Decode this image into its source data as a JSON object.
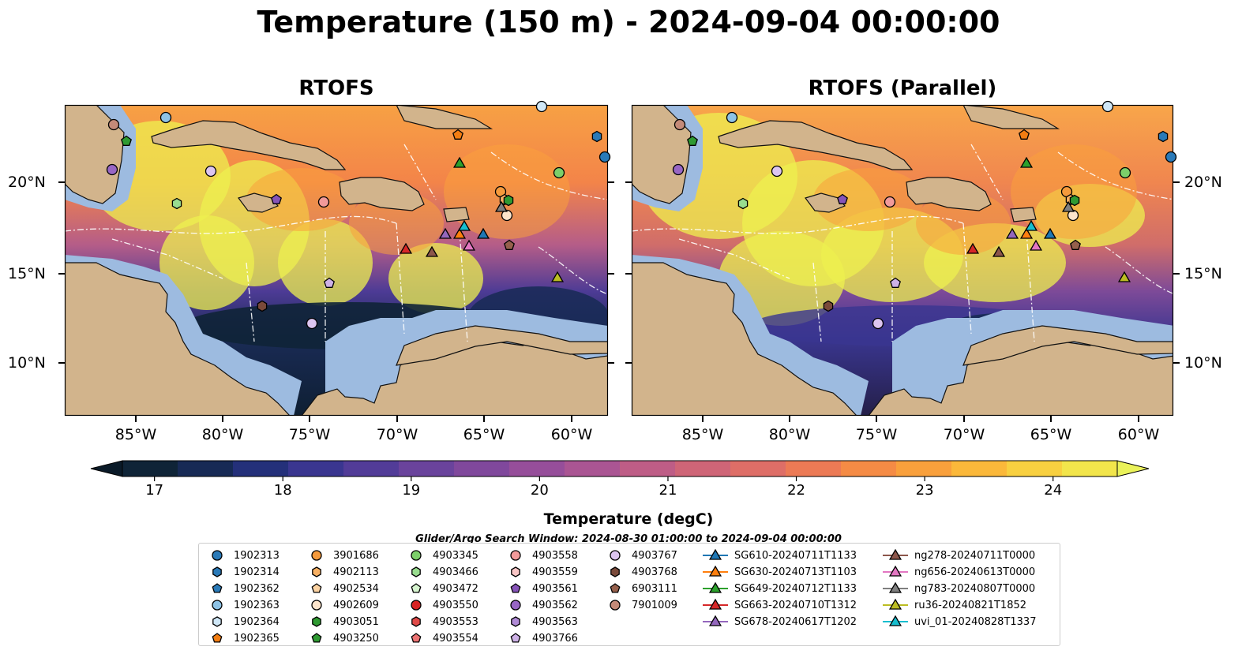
{
  "title": "Temperature (150 m) - 2024-09-04 00:00:00",
  "panels": [
    {
      "name": "RTOFS"
    },
    {
      "name": "RTOFS (Parallel)"
    }
  ],
  "latitude_labels": [
    "20°N",
    "15°N",
    "10°N"
  ],
  "longitude_labels": [
    "85°W",
    "80°W",
    "75°W",
    "70°W",
    "65°W",
    "60°W"
  ],
  "colorbar": {
    "label": "Temperature (degC)",
    "ticks": [
      "17",
      "18",
      "19",
      "20",
      "21",
      "22",
      "23",
      "24"
    ],
    "min": 16.75,
    "max": 24.5,
    "colors": [
      "#0f2437",
      "#172a55",
      "#24307a",
      "#3a3690",
      "#523c98",
      "#6a439c",
      "#80489c",
      "#964e9a",
      "#aa5593",
      "#be5d86",
      "#cf6577",
      "#de6e67",
      "#ec7a55",
      "#f58b45",
      "#f9a03c",
      "#fbb83a",
      "#f8d040",
      "#f2e54b"
    ],
    "extend_low_color": "#0a1a28",
    "extend_high_color": "#eaf25a"
  },
  "search_window": "Glider/Argo Search Window: 2024-08-30 01:00:00 to 2024-09-04 00:00:00",
  "legend": {
    "argo": [
      {
        "label": "1902313",
        "shape": "circle",
        "color": "#2a7ab8"
      },
      {
        "label": "1902314",
        "shape": "hexagon",
        "color": "#2a7ab8"
      },
      {
        "label": "1902362",
        "shape": "pentagon",
        "color": "#2a7ab8"
      },
      {
        "label": "1902363",
        "shape": "circle",
        "color": "#8ec3e6"
      },
      {
        "label": "1902364",
        "shape": "hexagon",
        "color": "#cfe7f7"
      },
      {
        "label": "1902365",
        "shape": "pentagon",
        "color": "#f27d12"
      },
      {
        "label": "3901686",
        "shape": "circle",
        "color": "#f59a3c"
      },
      {
        "label": "4902113",
        "shape": "hexagon",
        "color": "#f8b063"
      },
      {
        "label": "4902534",
        "shape": "pentagon",
        "color": "#fcd3a2"
      },
      {
        "label": "4902609",
        "shape": "circle",
        "color": "#fde5cc"
      },
      {
        "label": "4903051",
        "shape": "hexagon",
        "color": "#2f9a32"
      },
      {
        "label": "4903250",
        "shape": "pentagon",
        "color": "#2f9a32"
      },
      {
        "label": "4903345",
        "shape": "circle",
        "color": "#7ccf6a"
      },
      {
        "label": "4903466",
        "shape": "hexagon",
        "color": "#99dd8f"
      },
      {
        "label": "4903472",
        "shape": "pentagon",
        "color": "#d7f5d0"
      },
      {
        "label": "4903550",
        "shape": "circle",
        "color": "#d62222"
      },
      {
        "label": "4903553",
        "shape": "hexagon",
        "color": "#e04a48"
      },
      {
        "label": "4903554",
        "shape": "pentagon",
        "color": "#ec7373"
      },
      {
        "label": "4903558",
        "shape": "circle",
        "color": "#f29a9a"
      },
      {
        "label": "4903559",
        "shape": "hexagon",
        "color": "#f9c5c5"
      },
      {
        "label": "4903561",
        "shape": "pentagon",
        "color": "#8654b8"
      },
      {
        "label": "4903562",
        "shape": "circle",
        "color": "#9866c4"
      },
      {
        "label": "4903563",
        "shape": "hexagon",
        "color": "#b08ad6"
      },
      {
        "label": "4903766",
        "shape": "pentagon",
        "color": "#cdb1e6"
      },
      {
        "label": "4903767",
        "shape": "circle",
        "color": "#dcc5f0"
      },
      {
        "label": "4903768",
        "shape": "hexagon",
        "color": "#7a4a3a"
      },
      {
        "label": "6903111",
        "shape": "pentagon",
        "color": "#96604c"
      },
      {
        "label": "7901009",
        "shape": "circle",
        "color": "#c48a78"
      }
    ],
    "gliders": [
      {
        "label": "SG610-20240711T1133",
        "color": "#1f77b4"
      },
      {
        "label": "SG630-20240713T1103",
        "color": "#ff7f0e"
      },
      {
        "label": "SG649-20240712T1133",
        "color": "#2ca02c"
      },
      {
        "label": "SG663-20240710T1312",
        "color": "#d62728"
      },
      {
        "label": "SG678-20240617T1202",
        "color": "#9467bd"
      },
      {
        "label": "ng278-20240711T0000",
        "color": "#8c564b"
      },
      {
        "label": "ng656-20240613T0000",
        "color": "#e377c2"
      },
      {
        "label": "ng783-20240807T0000",
        "color": "#7f7f7f"
      },
      {
        "label": "ru36-20240821T1852",
        "color": "#bcbd22"
      },
      {
        "label": "uvi_01-20240828T1337",
        "color": "#17becf"
      }
    ]
  },
  "land_color": "#d2b48c",
  "shelf_color": "#9dbbe0"
}
